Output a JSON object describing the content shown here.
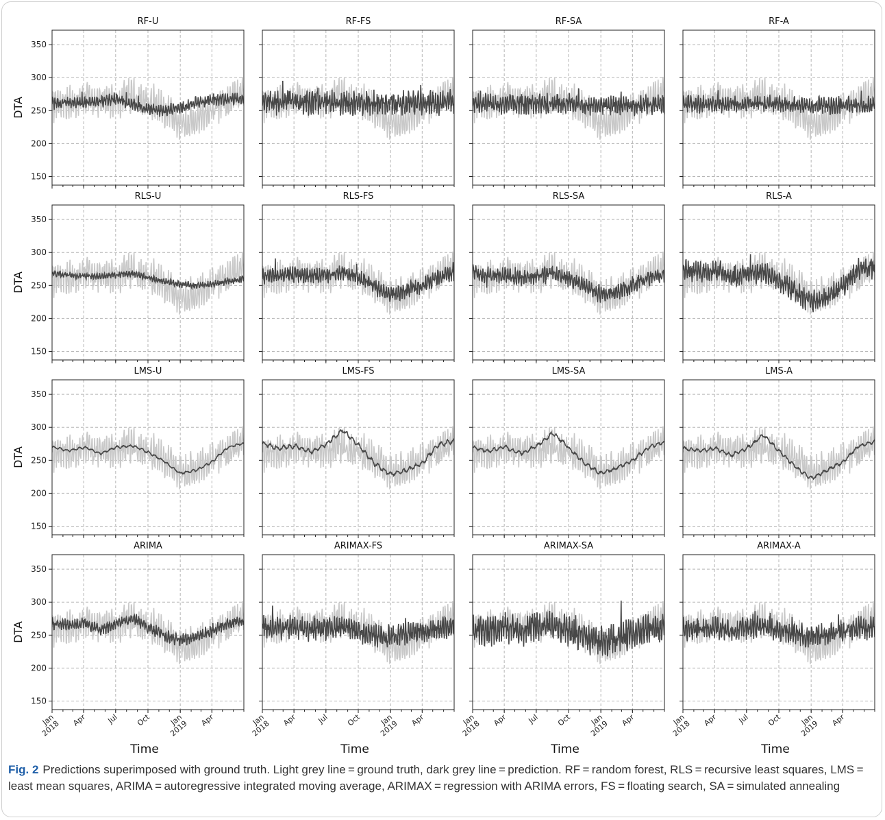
{
  "figure": {
    "caption_label": "Fig. 2",
    "caption_text": "Predictions superimposed with ground truth. Light grey line = ground truth, dark grey line = prediction. RF = random forest, RLS = recursive least squares, LMS = least mean squares, ARIMA = autoregressive integrated moving average, ARIMAX = regression with ARIMA errors, FS = floating search, SA = simulated annealing"
  },
  "chart_data": {
    "type": "line",
    "ylabel": "DTA",
    "xlabel": "Time",
    "ylim": [
      137,
      372
    ],
    "y_ticks": [
      "150",
      "200",
      "250",
      "300",
      "350"
    ],
    "x_range": [
      "2018-01-01",
      "2019-07-01"
    ],
    "x_ticks": [
      {
        "date": "2018-01-01",
        "line1": "Jan",
        "line2": "2018"
      },
      {
        "date": "2018-04-01",
        "line1": "Apr",
        "line2": ""
      },
      {
        "date": "2018-07-01",
        "line1": "Jul",
        "line2": ""
      },
      {
        "date": "2018-10-01",
        "line1": "Oct",
        "line2": ""
      },
      {
        "date": "2019-01-01",
        "line1": "Jan",
        "line2": "2019"
      },
      {
        "date": "2019-04-01",
        "line1": "Apr",
        "line2": ""
      }
    ],
    "grid": true,
    "colors": {
      "ground_truth": "#c8c8c8",
      "prediction": "#474747"
    },
    "ground_truth": {
      "base": [
        258,
        262,
        268,
        262,
        264,
        272,
        262,
        250,
        232,
        238,
        252,
        262,
        276
      ],
      "amplitude": 26
    },
    "panels": [
      {
        "title": "RF-U",
        "base": [
          262,
          262,
          262,
          264,
          268,
          260,
          252,
          250,
          254,
          262,
          266,
          268,
          268
        ],
        "amplitude": 9,
        "smooth": false
      },
      {
        "title": "RF-FS",
        "base": [
          262,
          262,
          262,
          262,
          262,
          262,
          262,
          262,
          262,
          262,
          262,
          262,
          262
        ],
        "amplitude": 18,
        "smooth": false
      },
      {
        "title": "RF-SA",
        "base": [
          260,
          260,
          260,
          260,
          260,
          260,
          260,
          258,
          258,
          258,
          258,
          258,
          258
        ],
        "amplitude": 15,
        "smooth": false
      },
      {
        "title": "RF-A",
        "base": [
          260,
          260,
          260,
          260,
          260,
          260,
          260,
          258,
          258,
          258,
          258,
          258,
          258
        ],
        "amplitude": 13,
        "smooth": false
      },
      {
        "title": "RLS-U",
        "base": [
          268,
          266,
          264,
          264,
          266,
          268,
          262,
          256,
          252,
          250,
          252,
          256,
          260
        ],
        "amplitude": 5,
        "smooth": false
      },
      {
        "title": "RLS-FS",
        "base": [
          262,
          265,
          266,
          264,
          266,
          270,
          262,
          248,
          236,
          242,
          250,
          262,
          268
        ],
        "amplitude": 12,
        "smooth": false
      },
      {
        "title": "RLS-SA",
        "base": [
          270,
          266,
          266,
          260,
          264,
          270,
          260,
          248,
          236,
          240,
          250,
          262,
          266
        ],
        "amplitude": 12,
        "smooth": false
      },
      {
        "title": "RLS-A",
        "base": [
          275,
          270,
          275,
          262,
          266,
          272,
          256,
          240,
          224,
          232,
          250,
          272,
          278
        ],
        "amplitude": 16,
        "smooth": false
      },
      {
        "title": "LMS-U",
        "base": [
          270,
          264,
          270,
          260,
          270,
          272,
          262,
          248,
          230,
          235,
          248,
          270,
          276
        ],
        "amplitude": 3,
        "smooth": true
      },
      {
        "title": "LMS-FS",
        "base": [
          275,
          268,
          272,
          262,
          275,
          296,
          272,
          245,
          228,
          235,
          246,
          274,
          280
        ],
        "amplitude": 6,
        "smooth": true
      },
      {
        "title": "LMS-SA",
        "base": [
          270,
          264,
          270,
          260,
          272,
          292,
          268,
          245,
          230,
          238,
          250,
          270,
          278
        ],
        "amplitude": 5,
        "smooth": true
      },
      {
        "title": "LMS-A",
        "base": [
          268,
          264,
          268,
          258,
          268,
          288,
          264,
          240,
          222,
          235,
          248,
          272,
          278
        ],
        "amplitude": 5,
        "smooth": true
      },
      {
        "title": "ARIMA",
        "base": [
          268,
          265,
          268,
          258,
          266,
          276,
          262,
          250,
          242,
          248,
          256,
          268,
          272
        ],
        "amplitude": 9,
        "smooth": false
      },
      {
        "title": "ARIMAX-FS",
        "base": [
          262,
          260,
          262,
          258,
          260,
          262,
          256,
          250,
          248,
          252,
          256,
          260,
          262
        ],
        "amplitude": 17,
        "smooth": false
      },
      {
        "title": "ARIMAX-SA",
        "base": [
          258,
          256,
          262,
          256,
          262,
          266,
          256,
          246,
          240,
          246,
          252,
          258,
          262
        ],
        "amplitude": 22,
        "smooth": false
      },
      {
        "title": "ARIMAX-A",
        "base": [
          260,
          258,
          262,
          256,
          260,
          264,
          258,
          252,
          248,
          252,
          256,
          260,
          262
        ],
        "amplitude": 17,
        "smooth": false
      }
    ]
  }
}
